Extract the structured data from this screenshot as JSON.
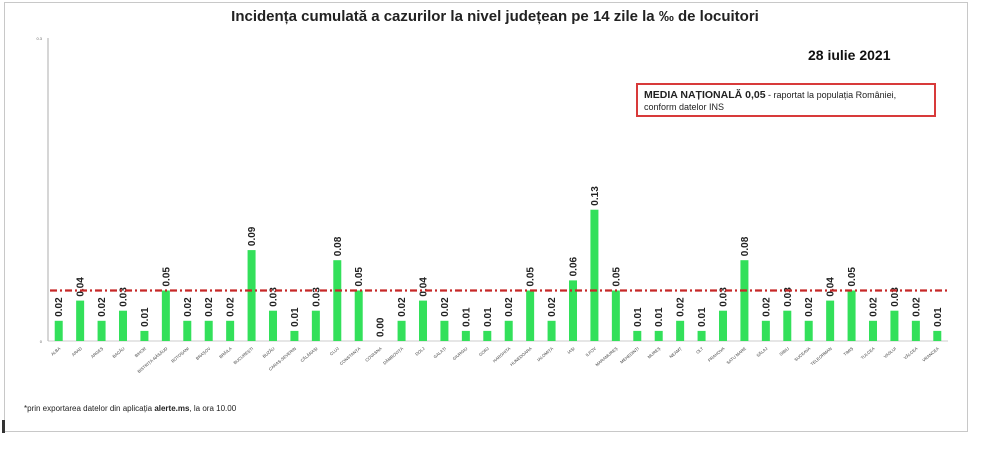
{
  "title": "Incidența cumulată a cazurilor la nivel județean pe 14 zile   la ‰ de locuitori",
  "date": "28 iulie 2021",
  "media": {
    "bold": "MEDIA NAȚIONALĂ 0,05",
    "text": " - raportat la populația României, conform datelor INS"
  },
  "footnote": {
    "prefix": "*prin exportarea datelor din aplicația ",
    "bold": "alerte.ms",
    "suffix": ", la ora 10.00"
  },
  "colors": {
    "bar": "#33e05a",
    "average_line": "#c62828"
  },
  "chart_data": {
    "type": "bar",
    "ylim": [
      0,
      0.3
    ],
    "yticks": [
      "0",
      "0.3"
    ],
    "average": 0.05,
    "categories": [
      "ALBA",
      "ARAD",
      "ARGEȘ",
      "BACĂU",
      "BIHOR",
      "BISTRIȚA-NĂSĂUD",
      "BOTOȘANI",
      "BRAȘOV",
      "BRĂILA",
      "BUCUREȘTI",
      "BUZĂU",
      "CARAȘ-SEVERIN",
      "CĂLĂRAȘI",
      "CLUJ",
      "CONSTANȚA",
      "COVASNA",
      "DÂMBOVIȚA",
      "DOLJ",
      "GALAȚI",
      "GIURGIU",
      "GORJ",
      "HARGHITA",
      "HUNEDOARA",
      "IALOMIȚA",
      "IAȘI",
      "ILFOV",
      "MARAMUREȘ",
      "MEHEDINȚI",
      "MUREȘ",
      "NEAMȚ",
      "OLT",
      "PRAHOVA",
      "SATU MARE",
      "SĂLAJ",
      "SIBIU",
      "SUCEAVA",
      "TELEORMAN",
      "TIMIȘ",
      "TULCEA",
      "VASLUI",
      "VÂLCEA",
      "VRANCEA"
    ],
    "values": [
      0.02,
      0.04,
      0.02,
      0.03,
      0.01,
      0.05,
      0.02,
      0.02,
      0.02,
      0.09,
      0.03,
      0.01,
      0.03,
      0.08,
      0.05,
      0.0,
      0.02,
      0.04,
      0.02,
      0.01,
      0.01,
      0.02,
      0.05,
      0.02,
      0.06,
      0.13,
      0.05,
      0.01,
      0.01,
      0.02,
      0.01,
      0.03,
      0.08,
      0.02,
      0.03,
      0.02,
      0.04,
      0.05,
      0.02,
      0.03,
      0.02,
      0.01
    ],
    "labels": [
      "0.02",
      "0.04",
      "0.02",
      "0.03",
      "0.01",
      "0.05",
      "0.02",
      "0.02",
      "0.02",
      "0.09",
      "0.03",
      "0.01",
      "0.03",
      "0.08",
      "0.05",
      "0.00",
      "0.02",
      "0.04",
      "0.02",
      "0.01",
      "0.01",
      "0.02",
      "0.05",
      "0.02",
      "0.06",
      "0.13",
      "0.05",
      "0.01",
      "0.01",
      "0.02",
      "0.01",
      "0.03",
      "0.08",
      "0.02",
      "0.03",
      "0.02",
      "0.04",
      "0.05",
      "0.02",
      "0.03",
      "0.02",
      "0.01"
    ]
  }
}
